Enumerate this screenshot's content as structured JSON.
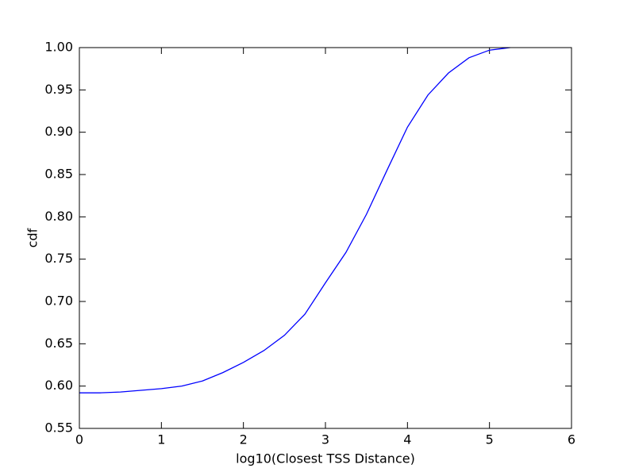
{
  "chart_data": {
    "type": "line",
    "xlabel": "log10(Closest TSS Distance)",
    "ylabel": "cdf",
    "x": [
      0,
      0.25,
      0.5,
      0.75,
      1,
      1.25,
      1.5,
      1.75,
      2,
      2.25,
      2.5,
      2.75,
      3,
      3.25,
      3.5,
      3.75,
      4,
      4.25,
      4.5,
      4.75,
      5,
      5.25
    ],
    "series": [
      {
        "color": "#0000ff",
        "values": [
          0.592,
          0.592,
          0.593,
          0.595,
          0.597,
          0.6,
          0.606,
          0.616,
          0.628,
          0.642,
          0.66,
          0.685,
          0.722,
          0.758,
          0.803,
          0.855,
          0.906,
          0.944,
          0.97,
          0.988,
          0.997,
          1.0
        ]
      }
    ],
    "xlim": [
      0,
      6
    ],
    "xticks": [
      0,
      1,
      2,
      3,
      4,
      5,
      6
    ],
    "ylim": [
      0.55,
      1.0
    ],
    "yticks": [
      {
        "value": 0.55,
        "label": "0.55"
      },
      {
        "value": 0.6,
        "label": "0.60"
      },
      {
        "value": 0.65,
        "label": "0.65"
      },
      {
        "value": 0.7,
        "label": "0.70"
      },
      {
        "value": 0.75,
        "label": "0.75"
      },
      {
        "value": 0.8,
        "label": "0.80"
      },
      {
        "value": 0.85,
        "label": "0.85"
      },
      {
        "value": 0.9,
        "label": "0.90"
      },
      {
        "value": 0.95,
        "label": "0.95"
      },
      {
        "value": 1.0,
        "label": "1.00"
      }
    ],
    "grid": false
  }
}
